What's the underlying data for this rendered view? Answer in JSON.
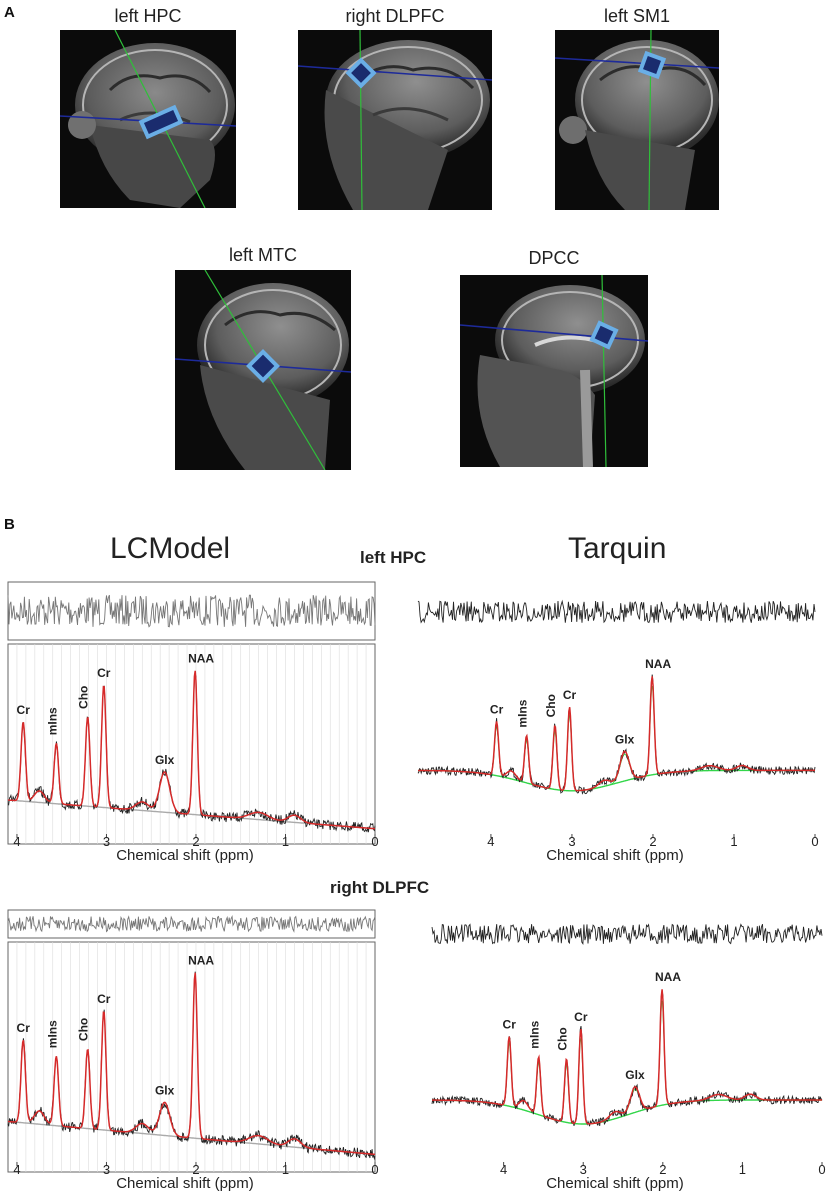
{
  "panel_a": {
    "letter": "A",
    "images": [
      {
        "label": "left HPC"
      },
      {
        "label": "right DLPFC"
      },
      {
        "label": "left SM1"
      },
      {
        "label": "left MTC"
      },
      {
        "label": "DPCC"
      }
    ],
    "colors": {
      "voxel_fill": "#6aaee6",
      "voxel_core": "#1a2c6e",
      "axial_line": "#1d2a9a",
      "coronal_line": "#2fbf3a"
    }
  },
  "panel_b": {
    "letter": "B",
    "methods": {
      "left": "LCModel",
      "right": "Tarquin"
    },
    "regions": [
      "left HPC",
      "right DLPFC"
    ],
    "x_axis_label": "Chemical shift (ppm)",
    "colors": {
      "fit": "#d62a2a",
      "components": "#33d64a",
      "data": "#222222",
      "baseline": "#aaaaaa"
    }
  },
  "chart_data": [
    {
      "type": "line",
      "title": "",
      "method": "LCModel",
      "region": "left HPC",
      "xlabel": "Chemical shift (ppm)",
      "xlim": [
        4.1,
        0
      ],
      "x_reversed": true,
      "x_ticks": [
        4,
        3,
        2,
        1,
        0
      ],
      "peaks": [
        {
          "label": "Cr",
          "ppm": 3.93,
          "height": 0.55
        },
        {
          "label": "mIns",
          "ppm": 3.56,
          "height": 0.42
        },
        {
          "label": "Cho",
          "ppm": 3.21,
          "height": 0.62
        },
        {
          "label": "Cr",
          "ppm": 3.03,
          "height": 0.85
        },
        {
          "label": "Glx",
          "ppm": 2.35,
          "height": 0.28
        },
        {
          "label": "NAA",
          "ppm": 2.01,
          "height": 1.0
        }
      ]
    },
    {
      "type": "line",
      "title": "",
      "method": "Tarquin",
      "region": "left HPC",
      "xlabel": "Chemical shift (ppm)",
      "xlim": [
        4.9,
        0
      ],
      "x_reversed": true,
      "x_ticks": [
        4,
        3,
        2,
        1,
        0
      ],
      "peaks": [
        {
          "label": "Cr",
          "ppm": 3.93,
          "height": 0.55
        },
        {
          "label": "mIns",
          "ppm": 3.56,
          "height": 0.48
        },
        {
          "label": "Cho",
          "ppm": 3.21,
          "height": 0.65
        },
        {
          "label": "Cr",
          "ppm": 3.03,
          "height": 0.85
        },
        {
          "label": "Glx",
          "ppm": 2.35,
          "height": 0.3
        },
        {
          "label": "NAA",
          "ppm": 2.01,
          "height": 1.0
        }
      ]
    },
    {
      "type": "line",
      "title": "",
      "method": "LCModel",
      "region": "right DLPFC",
      "xlabel": "Chemical shift (ppm)",
      "xlim": [
        4.1,
        0
      ],
      "x_reversed": true,
      "x_ticks": [
        4,
        3,
        2,
        1,
        0
      ],
      "peaks": [
        {
          "label": "Cr",
          "ppm": 3.93,
          "height": 0.5
        },
        {
          "label": "mIns",
          "ppm": 3.56,
          "height": 0.42
        },
        {
          "label": "Cho",
          "ppm": 3.21,
          "height": 0.48
        },
        {
          "label": "Cr",
          "ppm": 3.03,
          "height": 0.72
        },
        {
          "label": "Glx",
          "ppm": 2.35,
          "height": 0.2
        },
        {
          "label": "NAA",
          "ppm": 2.01,
          "height": 1.0
        }
      ]
    },
    {
      "type": "line",
      "title": "",
      "method": "Tarquin",
      "region": "right DLPFC",
      "xlabel": "Chemical shift (ppm)",
      "xlim": [
        4.9,
        0
      ],
      "x_reversed": true,
      "x_ticks": [
        4,
        3,
        2,
        1,
        0
      ],
      "peaks": [
        {
          "label": "Cr",
          "ppm": 3.93,
          "height": 0.6
        },
        {
          "label": "mIns",
          "ppm": 3.56,
          "height": 0.5
        },
        {
          "label": "Cho",
          "ppm": 3.21,
          "height": 0.55
        },
        {
          "label": "Cr",
          "ppm": 3.03,
          "height": 0.82
        },
        {
          "label": "Glx",
          "ppm": 2.35,
          "height": 0.22
        },
        {
          "label": "NAA",
          "ppm": 2.01,
          "height": 1.0
        }
      ]
    }
  ]
}
